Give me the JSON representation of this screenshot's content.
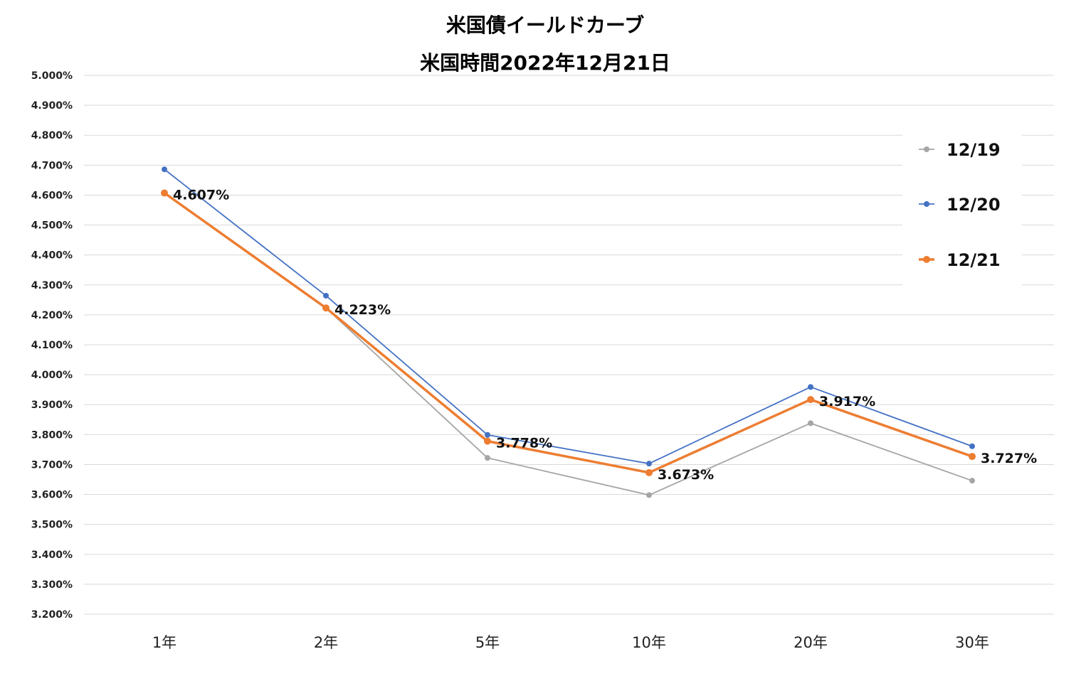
{
  "title": {
    "line1": "米国債イールドカーブ",
    "line2": "米国時間2022年12月21日"
  },
  "chart_data": {
    "type": "line",
    "categories": [
      "1年",
      "2年",
      "5年",
      "10年",
      "20年",
      "30年"
    ],
    "ylim": [
      3.2,
      5.0
    ],
    "y_tick_step": 0.1,
    "y_tick_format": "percent-3dp",
    "grid": true,
    "legend_position": "right",
    "series": [
      {
        "name": "12/19",
        "color": "#a5a5a5",
        "values": [
          4.607,
          4.223,
          3.722,
          3.598,
          3.838,
          3.646
        ],
        "show_data_labels": false
      },
      {
        "name": "12/20",
        "color": "#4472c4",
        "values": [
          4.686,
          4.264,
          3.799,
          3.703,
          3.959,
          3.761
        ],
        "show_data_labels": false
      },
      {
        "name": "12/21",
        "color": "#ed7d31",
        "values": [
          4.607,
          4.223,
          3.778,
          3.673,
          3.917,
          3.727
        ],
        "show_data_labels": true,
        "data_labels": [
          "4.607%",
          "4.223%",
          "3.778%",
          "3.673%",
          "3.917%",
          "3.727%"
        ]
      }
    ]
  }
}
